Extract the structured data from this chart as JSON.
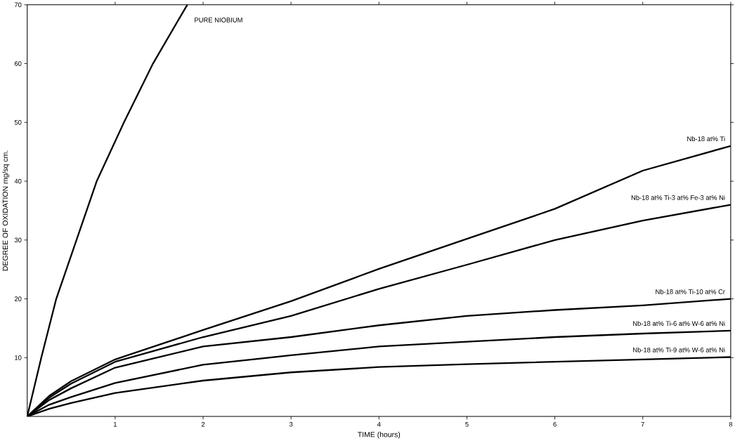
{
  "chart_data": {
    "type": "line",
    "xlabel": "TIME (hours)",
    "ylabel": "DEGREE OF OXIDATION  mg/sq cm.",
    "xlim": [
      0,
      8
    ],
    "ylim": [
      0,
      70
    ],
    "xticks": [
      1,
      2,
      3,
      4,
      5,
      6,
      7,
      8
    ],
    "yticks": [
      10,
      20,
      30,
      40,
      50,
      60,
      70
    ],
    "grid": false,
    "legend": false,
    "marker": "none",
    "line_style": "solid",
    "series": [
      {
        "name": "PURE NIOBIUM",
        "color": "#000000",
        "x": [
          0,
          0.16,
          0.33,
          0.56,
          0.79,
          1.1,
          1.43,
          1.82
        ],
        "values": [
          0,
          10,
          20,
          30,
          40,
          50,
          60,
          70
        ]
      },
      {
        "name": "Nb-18 at% Ti",
        "color": "#000000",
        "x": [
          0,
          0.25,
          0.5,
          1,
          2,
          3,
          4,
          5,
          6,
          7,
          8
        ],
        "values": [
          0,
          3.5,
          6,
          9.7,
          14.7,
          19.6,
          25.1,
          30.2,
          35.3,
          41.8,
          46
        ]
      },
      {
        "name": "Nb-18 at% Ti-3 at% Fe-3 at% Ni",
        "color": "#000000",
        "x": [
          0,
          0.25,
          0.5,
          1,
          2,
          3,
          4,
          5,
          6,
          7,
          8
        ],
        "values": [
          0,
          3.2,
          5.6,
          9.3,
          13.5,
          17.1,
          21.7,
          25.8,
          30,
          33.3,
          36
        ]
      },
      {
        "name": "Nb-18 at% Ti-10 at% Cr",
        "color": "#000000",
        "x": [
          0,
          0.25,
          0.5,
          1,
          2,
          3,
          4,
          5,
          6,
          7,
          8
        ],
        "values": [
          0,
          2.8,
          4.8,
          8.3,
          11.9,
          13.5,
          15.5,
          17.1,
          18.1,
          18.9,
          20
        ]
      },
      {
        "name": "Nb-18 at% Ti-6 at% W-6 at% Ni",
        "color": "#000000",
        "x": [
          0,
          0.25,
          0.5,
          1,
          2,
          3,
          4,
          5,
          6,
          7,
          8
        ],
        "values": [
          0,
          2,
          3.3,
          5.7,
          8.8,
          10.4,
          11.9,
          12.7,
          13.5,
          14.1,
          14.6
        ]
      },
      {
        "name": "Nb-18 at% Ti-9 at% W-6 at% Ni",
        "color": "#000000",
        "x": [
          0,
          0.25,
          0.5,
          1,
          2,
          3,
          4,
          5,
          6,
          7,
          8
        ],
        "values": [
          0,
          1.3,
          2.3,
          4,
          6.1,
          7.5,
          8.4,
          8.9,
          9.3,
          9.7,
          10.1
        ]
      }
    ]
  }
}
